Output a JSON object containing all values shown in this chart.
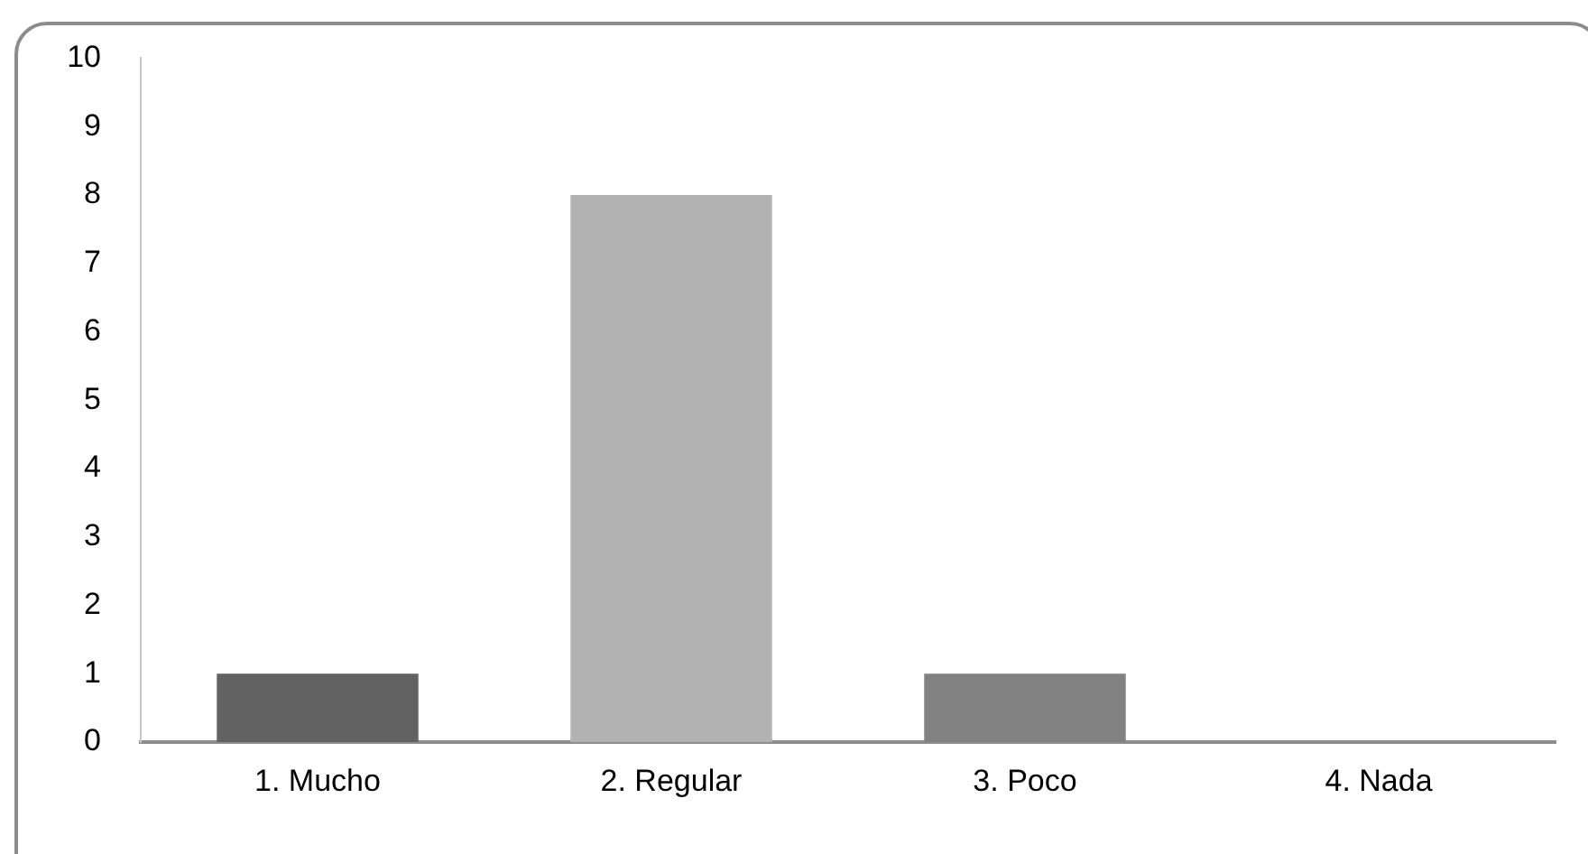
{
  "chart_data": {
    "type": "bar",
    "categories": [
      "1. Mucho",
      "2. Regular",
      "3. Poco",
      "4. Nada"
    ],
    "values": [
      1,
      8,
      1,
      0
    ],
    "colors": [
      "#626262",
      "#b2b2b2",
      "#828282",
      "#4d4d4d"
    ],
    "ylim": [
      0,
      10
    ],
    "yticks": [
      0,
      1,
      2,
      3,
      4,
      5,
      6,
      7,
      8,
      9,
      10
    ],
    "grid": false,
    "legend": false
  }
}
